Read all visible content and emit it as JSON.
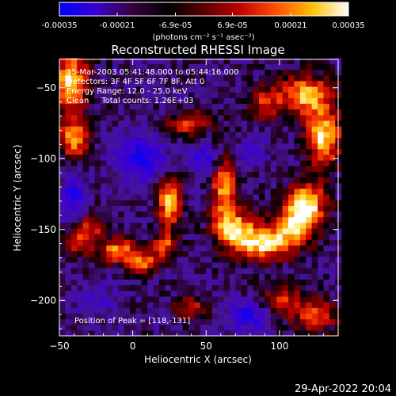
{
  "colorbar": {
    "ticks": [
      "-0.00035",
      "-0.00021",
      "-6.9e-05",
      "6.9e-05",
      "0.00021",
      "0.00035"
    ],
    "tick_values": [
      -0.00035,
      -0.00021,
      -6.9e-05,
      6.9e-05,
      0.00021,
      0.00035
    ],
    "range": [
      -0.00035,
      0.00035
    ],
    "units": "(photons cm⁻² s⁻¹ asec⁻²)",
    "colors": [
      "#0000ff",
      "#3a00d0",
      "#3a0040",
      "#000000",
      "#5a0000",
      "#c00000",
      "#ff5000",
      "#ffc000",
      "#ffffff"
    ]
  },
  "chart_data": {
    "type": "heatmap",
    "title": "Reconstructed RHESSI Image",
    "xlabel": "Heliocentric X (arcsec)",
    "ylabel": "Heliocentric Y (arcsec)",
    "xlim": [
      -50,
      140
    ],
    "ylim": [
      -225,
      -30
    ],
    "xticks": [
      -50,
      0,
      50,
      100
    ],
    "yticks": [
      -200,
      -150,
      -100,
      -50
    ],
    "annotations": [
      "15-Mar-2003 05:41:48.000 to 05:44:16.000",
      "Detectors: 3F 4F 5F 6F 7F 8F, Att 0",
      "Energy Range: 12.0 - 25.0 keV",
      "Clean     Total counts: 1.26E+03"
    ],
    "peak_label": "Position of Peak = [118,-131]",
    "peak": [
      118,
      -131
    ],
    "hotspots": [
      {
        "x": -42,
        "y": -45,
        "amp": 0.95,
        "sx": 8,
        "sy": 14
      },
      {
        "x": -40,
        "y": -85,
        "amp": 0.8,
        "sx": 7,
        "sy": 10
      },
      {
        "x": -30,
        "y": -150,
        "amp": 0.55,
        "sx": 8,
        "sy": 10
      },
      {
        "x": -40,
        "y": -160,
        "amp": 0.5,
        "sx": 6,
        "sy": 6
      },
      {
        "x": -10,
        "y": -165,
        "amp": 0.75,
        "sx": 8,
        "sy": 6
      },
      {
        "x": 8,
        "y": -172,
        "amp": 0.7,
        "sx": 8,
        "sy": 6
      },
      {
        "x": 25,
        "y": -130,
        "amp": 0.9,
        "sx": 6,
        "sy": 12
      },
      {
        "x": 22,
        "y": -160,
        "amp": 0.55,
        "sx": 6,
        "sy": 6
      },
      {
        "x": 38,
        "y": -75,
        "amp": 0.6,
        "sx": 10,
        "sy": 6
      },
      {
        "x": 62,
        "y": -120,
        "amp": 0.75,
        "sx": 6,
        "sy": 18
      },
      {
        "x": 70,
        "y": -150,
        "amp": 0.85,
        "sx": 10,
        "sy": 10
      },
      {
        "x": 90,
        "y": -160,
        "amp": 0.9,
        "sx": 12,
        "sy": 8
      },
      {
        "x": 110,
        "y": -148,
        "amp": 0.8,
        "sx": 10,
        "sy": 10
      },
      {
        "x": 118,
        "y": -131,
        "amp": 1.0,
        "sx": 9,
        "sy": 10
      },
      {
        "x": 130,
        "y": -85,
        "amp": 0.95,
        "sx": 8,
        "sy": 14
      },
      {
        "x": 118,
        "y": -55,
        "amp": 0.85,
        "sx": 12,
        "sy": 10
      },
      {
        "x": 90,
        "y": -60,
        "amp": 0.55,
        "sx": 8,
        "sy": 8
      },
      {
        "x": 100,
        "y": -200,
        "amp": 0.5,
        "sx": 12,
        "sy": 8
      },
      {
        "x": 125,
        "y": -210,
        "amp": 0.6,
        "sx": 10,
        "sy": 8
      },
      {
        "x": 40,
        "y": -205,
        "amp": 0.45,
        "sx": 8,
        "sy": 6
      }
    ],
    "coldspots": [
      {
        "x": 5,
        "y": -100,
        "amp": 0.6,
        "sx": 12,
        "sy": 12
      },
      {
        "x": -40,
        "y": -130,
        "amp": 0.6,
        "sx": 6,
        "sy": 14
      },
      {
        "x": 50,
        "y": -100,
        "amp": 0.5,
        "sx": 8,
        "sy": 8
      },
      {
        "x": 80,
        "y": -210,
        "amp": 0.6,
        "sx": 10,
        "sy": 8
      },
      {
        "x": -25,
        "y": -200,
        "amp": 0.3,
        "sx": 10,
        "sy": 8
      },
      {
        "x": 80,
        "y": -95,
        "amp": 0.4,
        "sx": 8,
        "sy": 6
      }
    ]
  },
  "footer": {
    "date": "29-Apr-2022 20:04"
  }
}
